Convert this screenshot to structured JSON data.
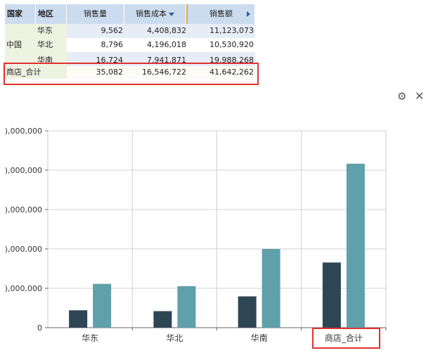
{
  "pivot": {
    "headers": {
      "country": "国家",
      "region": "地区",
      "col1": "销售量",
      "col2": "销售成本",
      "col3": "销售额"
    },
    "country_label": "中国",
    "rows": [
      {
        "region": "华东",
        "qty": "9,562",
        "cost": "4,408,832",
        "sales": "11,123,073"
      },
      {
        "region": "华北",
        "qty": "8,796",
        "cost": "4,196,018",
        "sales": "10,530,920"
      },
      {
        "region": "华南",
        "qty": "16,724",
        "cost": "7,941,871",
        "sales": "19,988,268"
      }
    ],
    "total": {
      "label": "商店_合计",
      "qty": "35,082",
      "cost": "16,546,722",
      "sales": "41,642,262"
    }
  },
  "controls": {
    "settings_icon": "gear-icon",
    "close_icon": "close-icon"
  },
  "colors": {
    "series_cost": "#2e4553",
    "series_sales": "#60a0aa",
    "highlight": "#e03131",
    "header_bg": "#ccdcef"
  },
  "chart_data": {
    "type": "bar",
    "categories": [
      "华东",
      "华北",
      "华南",
      "商店_合计"
    ],
    "series": [
      {
        "name": "",
        "values": [
          4408832,
          4196018,
          7941871,
          16546722
        ]
      },
      {
        "name": "",
        "values": [
          11123073,
          10530920,
          19988268,
          41642262
        ]
      }
    ],
    "ylim": [
      0,
      50000000
    ],
    "yticks": [
      "0",
      "),000,000",
      "),000,000",
      "),000,000",
      "),000,000",
      "),000,000"
    ],
    "grid": true,
    "legend": "none"
  }
}
